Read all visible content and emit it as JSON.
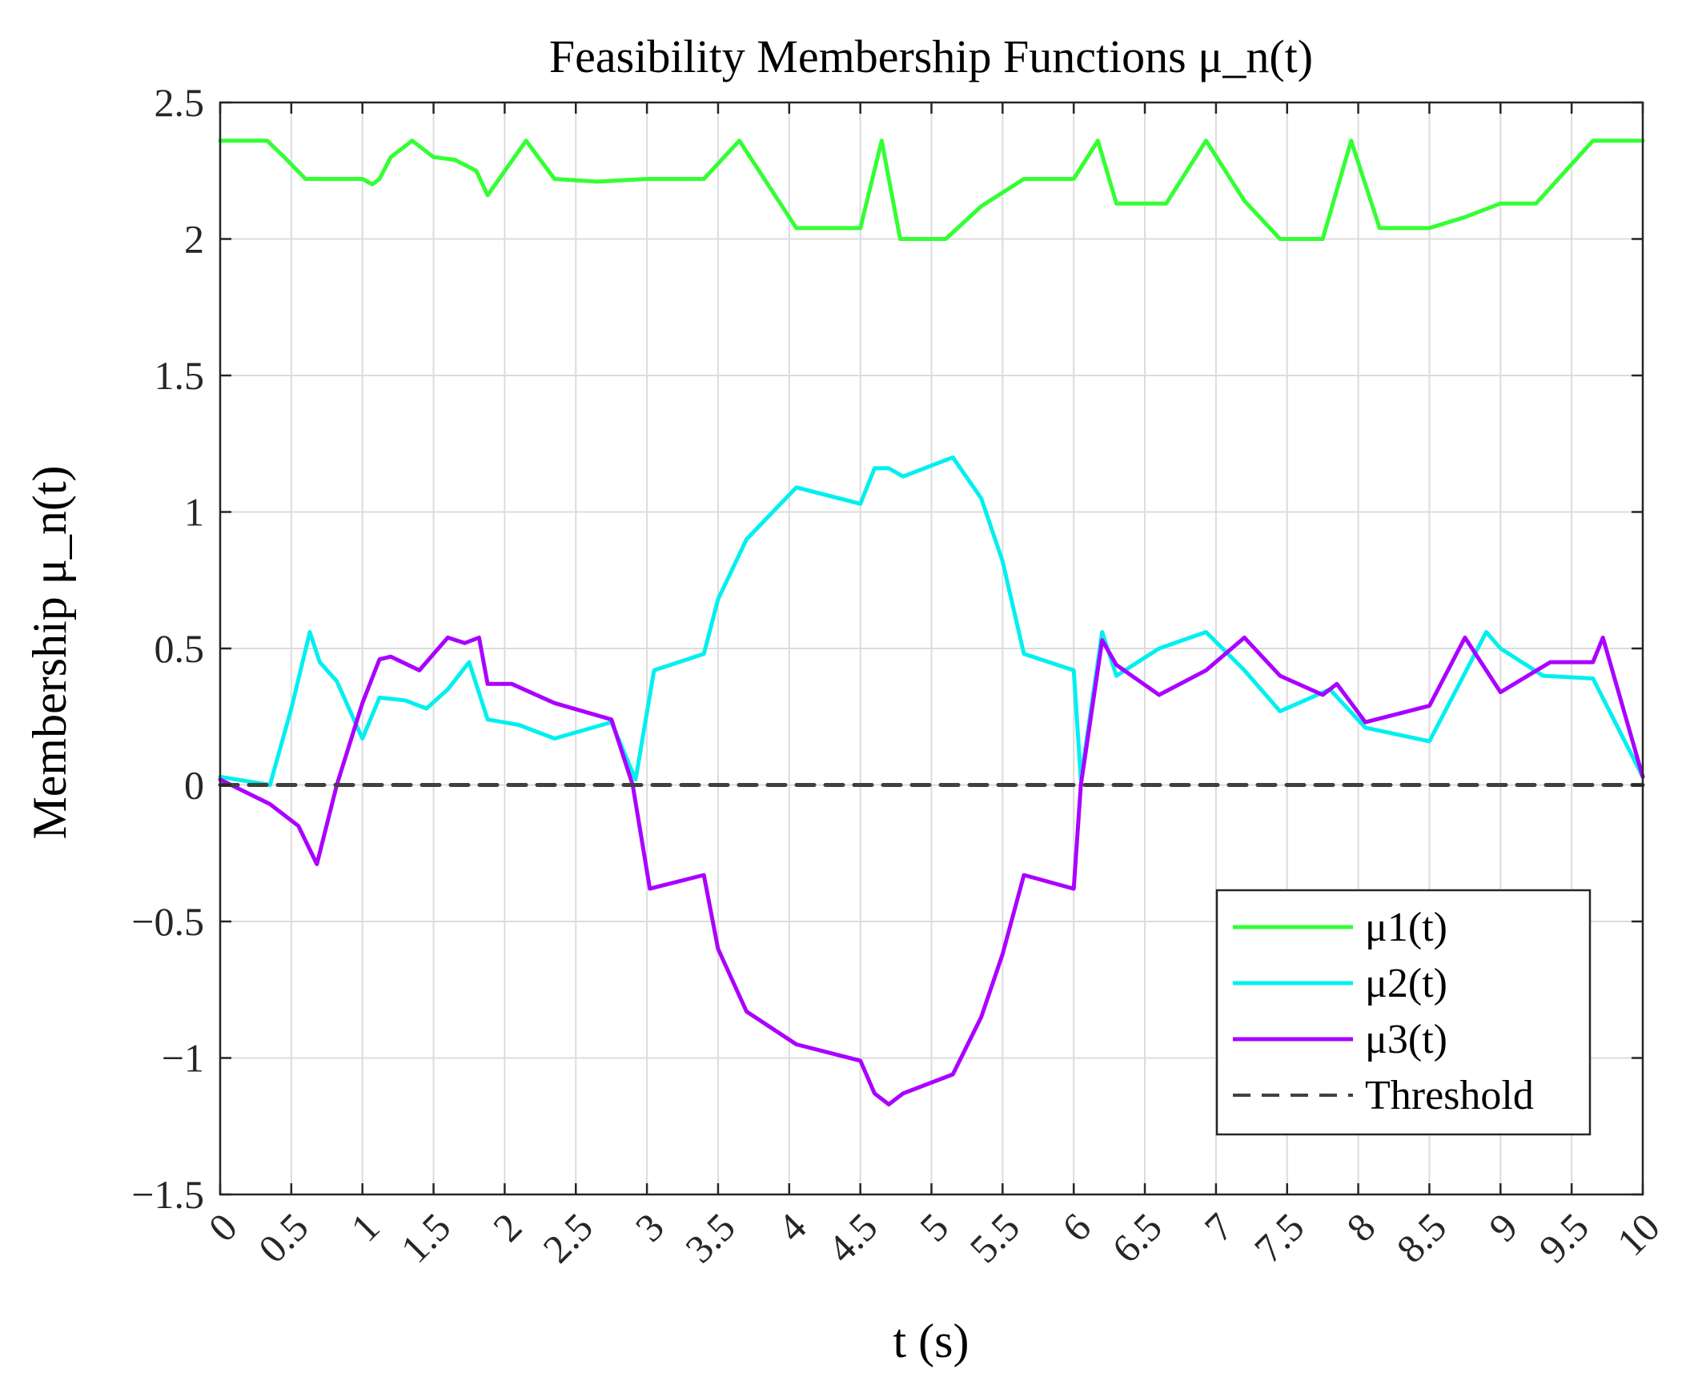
{
  "chart_data": {
    "type": "line",
    "title": "Feasibility Membership Functions μ_n(t)",
    "xlabel": "t (s)",
    "ylabel": "Membership μ_n(t)",
    "xlim": [
      0,
      10
    ],
    "ylim": [
      -1.5,
      2.5
    ],
    "xticks": [
      0,
      0.5,
      1,
      1.5,
      2,
      2.5,
      3,
      3.5,
      4,
      4.5,
      5,
      5.5,
      6,
      6.5,
      7,
      7.5,
      8,
      8.5,
      9,
      9.5,
      10
    ],
    "xtick_labels": [
      "0",
      "0.5",
      "1",
      "1.5",
      "2",
      "2.5",
      "3",
      "3.5",
      "4",
      "4.5",
      "5",
      "5.5",
      "6",
      "6.5",
      "7",
      "7.5",
      "8",
      "8.5",
      "9",
      "9.5",
      "10"
    ],
    "yticks": [
      -1.5,
      -1,
      -0.5,
      0,
      0.5,
      1,
      1.5,
      2,
      2.5
    ],
    "ytick_labels": [
      "−1.5",
      "−1",
      "−0.5",
      "0",
      "0.5",
      "1",
      "1.5",
      "2",
      "2.5"
    ],
    "grid": true,
    "legend_position": "bottom-right",
    "series": [
      {
        "name": "μ1(t)",
        "color": "#33ff33",
        "style": "solid",
        "x": [
          0,
          0.33,
          0.45,
          0.6,
          1.0,
          1.07,
          1.12,
          1.2,
          1.35,
          1.5,
          1.65,
          1.8,
          1.88,
          2.15,
          2.35,
          2.65,
          3.0,
          3.4,
          3.65,
          4.05,
          4.5,
          4.65,
          4.78,
          5.1,
          5.35,
          5.65,
          6.0,
          6.17,
          6.3,
          6.65,
          6.93,
          7.2,
          7.45,
          7.75,
          7.95,
          8.15,
          8.5,
          8.75,
          9.0,
          9.25,
          9.65,
          10.0
        ],
        "y": [
          2.36,
          2.36,
          2.3,
          2.22,
          2.22,
          2.2,
          2.22,
          2.3,
          2.36,
          2.3,
          2.29,
          2.25,
          2.16,
          2.36,
          2.22,
          2.21,
          2.22,
          2.22,
          2.36,
          2.04,
          2.04,
          2.36,
          2.0,
          2.0,
          2.12,
          2.22,
          2.22,
          2.36,
          2.13,
          2.13,
          2.36,
          2.14,
          2.0,
          2.0,
          2.36,
          2.04,
          2.04,
          2.08,
          2.13,
          2.13,
          2.36,
          2.36
        ]
      },
      {
        "name": "μ2(t)",
        "color": "#00f0f0",
        "style": "solid",
        "x": [
          0,
          0.35,
          0.5,
          0.63,
          0.7,
          0.82,
          1.0,
          1.12,
          1.3,
          1.45,
          1.6,
          1.75,
          1.88,
          2.1,
          2.35,
          2.75,
          2.92,
          3.05,
          3.4,
          3.5,
          3.7,
          4.05,
          4.5,
          4.6,
          4.7,
          4.8,
          5.15,
          5.35,
          5.5,
          5.65,
          6.0,
          6.05,
          6.2,
          6.3,
          6.6,
          6.93,
          7.2,
          7.45,
          7.8,
          8.05,
          8.5,
          8.9,
          9.0,
          9.3,
          9.65,
          10.0
        ],
        "y": [
          0.03,
          0.0,
          0.28,
          0.56,
          0.45,
          0.38,
          0.17,
          0.32,
          0.31,
          0.28,
          0.35,
          0.45,
          0.24,
          0.22,
          0.17,
          0.23,
          0.02,
          0.42,
          0.48,
          0.68,
          0.9,
          1.09,
          1.03,
          1.16,
          1.16,
          1.13,
          1.2,
          1.05,
          0.82,
          0.48,
          0.42,
          0.02,
          0.56,
          0.4,
          0.5,
          0.56,
          0.42,
          0.27,
          0.35,
          0.21,
          0.16,
          0.56,
          0.5,
          0.4,
          0.39,
          0.03
        ]
      },
      {
        "name": "μ3(t)",
        "color": "#aa00ff",
        "style": "solid",
        "x": [
          0,
          0.35,
          0.55,
          0.68,
          0.82,
          1.0,
          1.12,
          1.2,
          1.4,
          1.6,
          1.72,
          1.82,
          1.88,
          2.05,
          2.35,
          2.75,
          2.9,
          3.02,
          3.4,
          3.5,
          3.7,
          4.05,
          4.5,
          4.6,
          4.7,
          4.8,
          5.15,
          5.35,
          5.5,
          5.65,
          6.0,
          6.05,
          6.2,
          6.3,
          6.6,
          6.93,
          7.2,
          7.45,
          7.75,
          7.85,
          8.05,
          8.5,
          8.75,
          9.0,
          9.35,
          9.65,
          9.72,
          10.0
        ],
        "y": [
          0.02,
          -0.07,
          -0.15,
          -0.29,
          0.0,
          0.3,
          0.46,
          0.47,
          0.42,
          0.54,
          0.52,
          0.54,
          0.37,
          0.37,
          0.3,
          0.24,
          0.0,
          -0.38,
          -0.33,
          -0.6,
          -0.83,
          -0.95,
          -1.01,
          -1.13,
          -1.17,
          -1.13,
          -1.06,
          -0.85,
          -0.62,
          -0.33,
          -0.38,
          0.0,
          0.53,
          0.44,
          0.33,
          0.42,
          0.54,
          0.4,
          0.33,
          0.37,
          0.23,
          0.29,
          0.54,
          0.34,
          0.45,
          0.45,
          0.54,
          0.03
        ]
      },
      {
        "name": "Threshold",
        "color": "#404040",
        "style": "dashed",
        "x": [
          0,
          10
        ],
        "y": [
          0,
          0
        ]
      }
    ]
  }
}
